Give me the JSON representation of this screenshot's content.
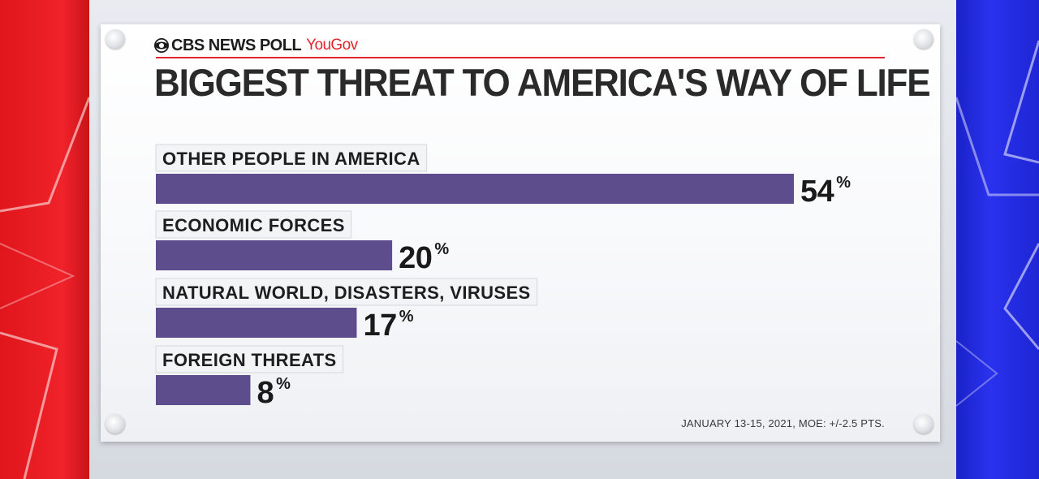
{
  "header": {
    "brand": "CBS NEWS POLL",
    "partner": "YouGov",
    "title": "BIGGEST THREAT TO AMERICA'S WAY OF LIFE"
  },
  "footnote": "JANUARY 13-15, 2021, MOE: +/-2.5 PTS.",
  "colors": {
    "bar": "#5e4d8c",
    "accent_red": "#e0262d",
    "left_panel": "#e0161c",
    "right_panel": "#2028dc"
  },
  "chart_data": {
    "type": "bar",
    "orientation": "horizontal",
    "title": "BIGGEST THREAT TO AMERICA'S WAY OF LIFE",
    "categories": [
      "OTHER PEOPLE IN AMERICA",
      "ECONOMIC FORCES",
      "NATURAL WORLD, DISASTERS, VIRUSES",
      "FOREIGN THREATS"
    ],
    "values": [
      54,
      20,
      17,
      8
    ],
    "unit": "%",
    "xlim": [
      0,
      54
    ],
    "grid": false,
    "legend": "none"
  }
}
